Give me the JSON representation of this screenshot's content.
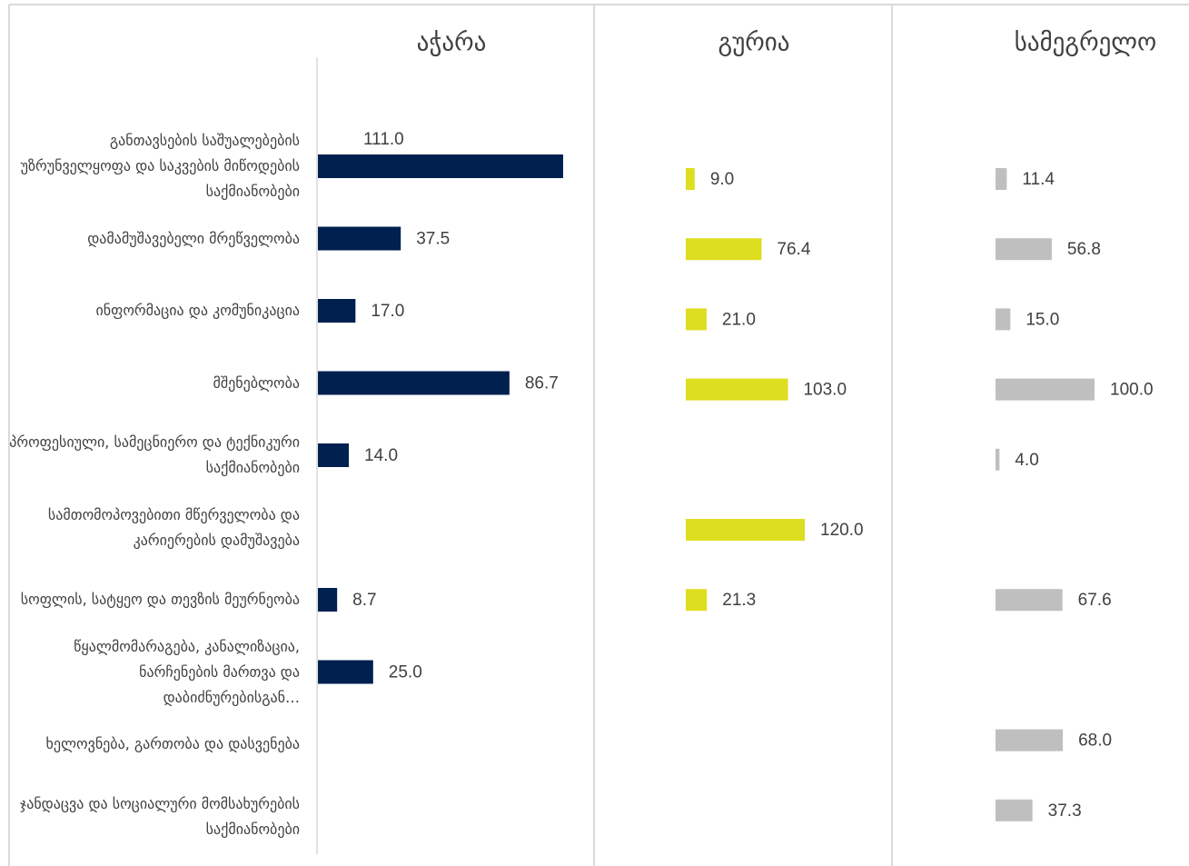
{
  "chart_data": [
    {
      "type": "bar",
      "horizontal": true,
      "title": "აჭარა",
      "color": "#002050",
      "categories": [
        "განთავსების საშუალებების უზრუნველყოფა და საკვების მიწოდების საქმიანობები",
        "დამამუშავებელი მრეწველობა",
        "ინფორმაცია და კომუნიკაცია",
        "მშენებლობა",
        "პროფესიული, სამეცნიერო და ტექნიკური საქმიანობები",
        "სამთომოპოვებითი მწერველობა და კარიერების დამუშავება",
        "სოფლის, სატყეო და თევზის მეურნეობა",
        "წყალმომარაგება, კანალიზაცია, ნარჩენების მართვა და დაბიძნურებისგან…",
        "ხელოვნება, გართობა და დასვენება",
        "ჯანდაცვა და სოციალური მომსახურების საქმიანობები"
      ],
      "values": [
        111.0,
        37.5,
        17.0,
        86.7,
        14.0,
        null,
        8.7,
        25.0,
        null,
        null
      ],
      "value_labels": [
        "111.0",
        "37.5",
        "17.0",
        "86.7",
        "14.0",
        null,
        "8.7",
        "25.0",
        null,
        null
      ],
      "xlim": [
        0,
        125
      ]
    },
    {
      "type": "bar",
      "horizontal": true,
      "title": "გურია",
      "color": "#dede20",
      "values": [
        9.0,
        76.4,
        21.0,
        103.0,
        null,
        120.0,
        21.3,
        null,
        null,
        null
      ],
      "value_labels": [
        "9.0",
        "76.4",
        "21.0",
        "103.0",
        null,
        "120.0",
        "21.3",
        null,
        null,
        null
      ],
      "xlim": [
        0,
        250
      ]
    },
    {
      "type": "bar",
      "horizontal": true,
      "title": "სამეგრელო",
      "color": "#bfbfbf",
      "values": [
        11.4,
        56.8,
        15.0,
        100.0,
        4.0,
        null,
        67.6,
        null,
        68.0,
        37.3
      ],
      "value_labels": [
        "11.4",
        "56.8",
        "15.0",
        "100.0",
        "4.0",
        null,
        "67.6",
        null,
        "68.0",
        "37.3"
      ],
      "xlim": [
        0,
        200
      ]
    }
  ]
}
